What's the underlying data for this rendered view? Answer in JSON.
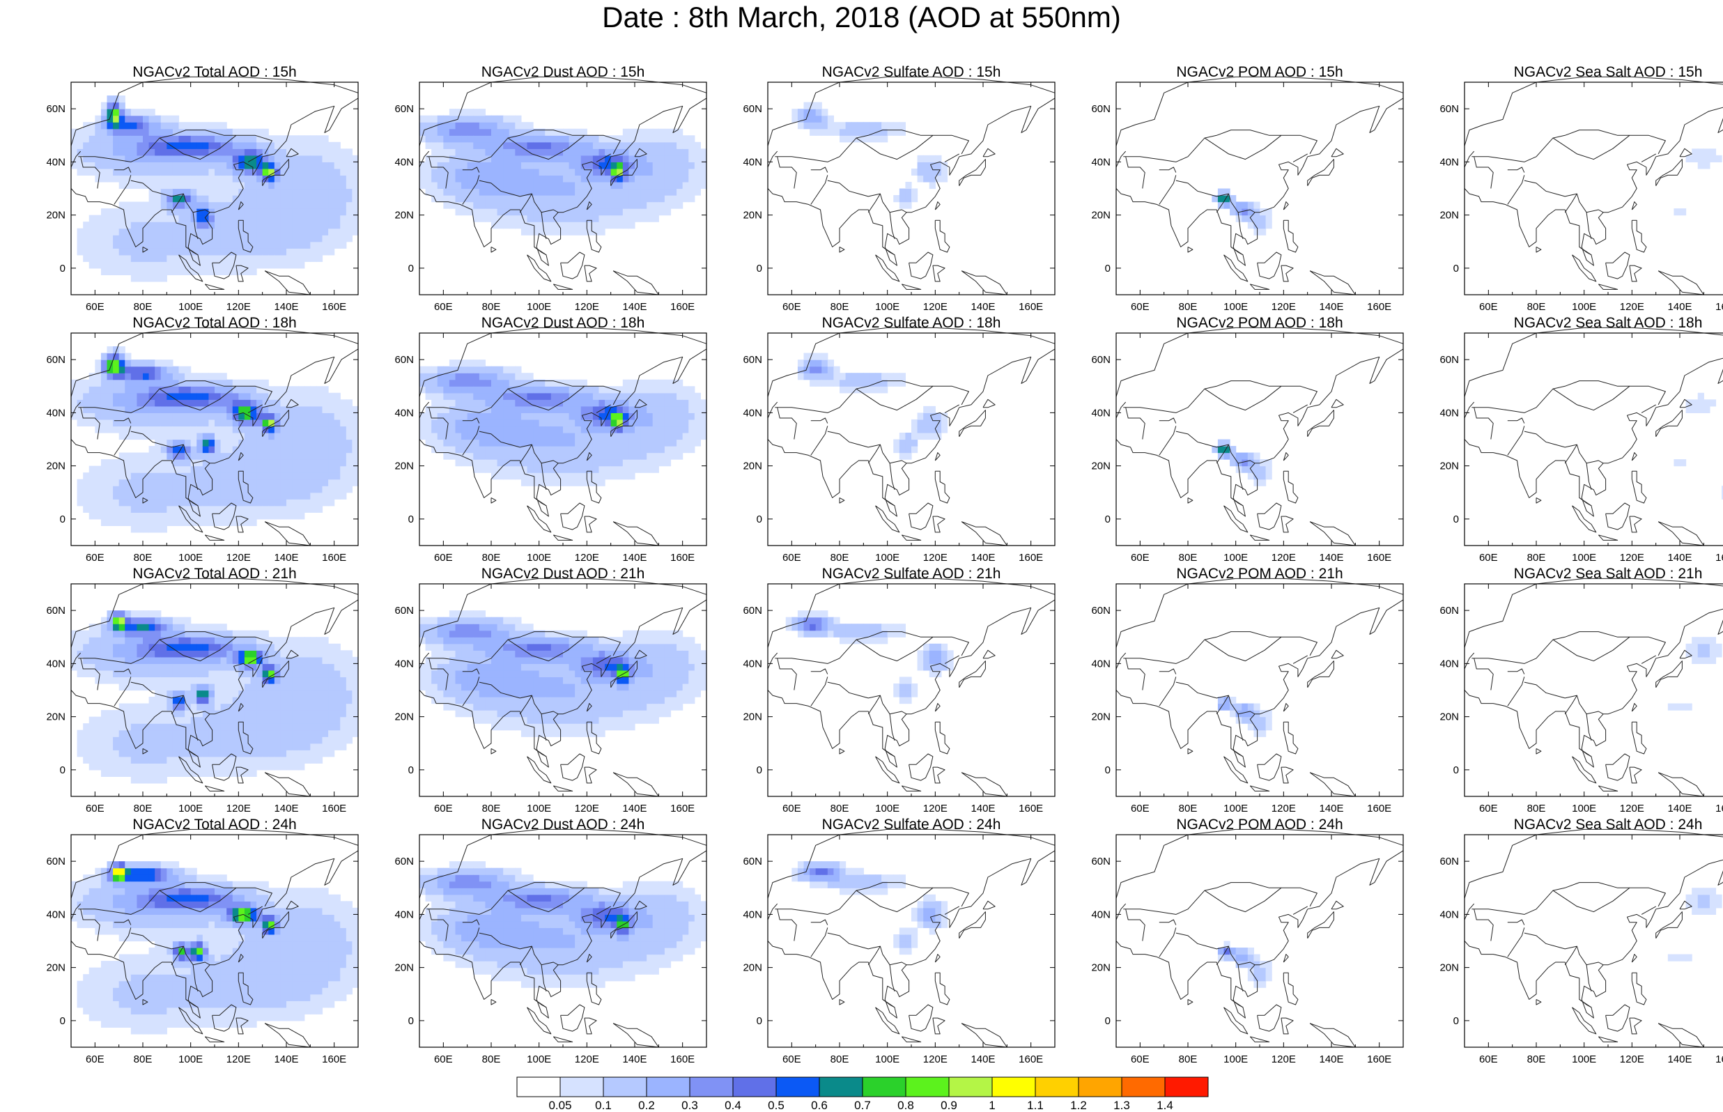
{
  "title": "Date : 8th March, 2018 (AOD at 550nm)",
  "lon_ticks": [
    "60E",
    "80E",
    "100E",
    "120E",
    "140E",
    "160E"
  ],
  "lat_ticks": [
    "60N",
    "40N",
    "20N",
    "0"
  ],
  "panels": [
    [
      "NGACv2 Total AOD : 15h",
      "NGACv2 Dust AOD : 15h",
      "NGACv2 Sulfate AOD : 15h",
      "NGACv2 POM AOD : 15h",
      "NGACv2 Sea Salt AOD : 15h"
    ],
    [
      "NGACv2 Total AOD : 18h",
      "NGACv2 Dust AOD : 18h",
      "NGACv2 Sulfate AOD : 18h",
      "NGACv2 POM AOD : 18h",
      "NGACv2 Sea Salt AOD : 18h"
    ],
    [
      "NGACv2 Total AOD : 21h",
      "NGACv2 Dust AOD : 21h",
      "NGACv2 Sulfate AOD : 21h",
      "NGACv2 POM AOD : 21h",
      "NGACv2 Sea Salt AOD : 21h"
    ],
    [
      "NGACv2 Total AOD : 24h",
      "NGACv2 Dust AOD : 24h",
      "NGACv2 Sulfate AOD : 24h",
      "NGACv2 POM AOD : 24h",
      "NGACv2 Sea Salt  AOD : 24h"
    ]
  ],
  "colorbar": {
    "labels": [
      "0.05",
      "0.1",
      "0.2",
      "0.3",
      "0.4",
      "0.5",
      "0.6",
      "0.7",
      "0.8",
      "0.9",
      "1",
      "1.1",
      "1.2",
      "1.3",
      "1.4"
    ],
    "colors": [
      "#ffffff",
      "#d6e2ff",
      "#b5c9ff",
      "#9bb4ff",
      "#8092f5",
      "#6070e8",
      "#0b59f5",
      "#0a8a8a",
      "#2bd12b",
      "#5cf21d",
      "#b4f546",
      "#ffff00",
      "#ffd000",
      "#ffa500",
      "#ff6a00",
      "#ff1a00"
    ]
  },
  "chart_data": {
    "type": "heatmap",
    "title": "Date : 8th March, 2018 (AOD at 550nm)",
    "variable": "AOD at 550nm",
    "rows_forecast_hours": [
      "15h",
      "18h",
      "21h",
      "24h"
    ],
    "columns_species": [
      "Total",
      "Dust",
      "Sulfate",
      "POM",
      "Sea Salt"
    ],
    "xlim": [
      50,
      170
    ],
    "ylim": [
      -10,
      70
    ],
    "x_ticks": [
      60,
      80,
      100,
      120,
      140,
      160
    ],
    "y_ticks": [
      60,
      40,
      20,
      0
    ],
    "colorbar_levels": [
      0.05,
      0.1,
      0.2,
      0.3,
      0.4,
      0.5,
      0.6,
      0.7,
      0.8,
      0.9,
      1,
      1.1,
      1.2,
      1.3,
      1.4
    ],
    "approximate_features": [
      {
        "species": "Total",
        "description": "dust plume band from ~50E 50N across to ~130E 40N, peaks ~0.8-0.9 near 70E 58N, 125E 38N, 95E 28N"
      },
      {
        "species": "Dust",
        "description": "band 50E-140E at 30-55N, peak ~0.6 near 130E 37N"
      },
      {
        "species": "Sulfate",
        "description": "~0.2-0.4 near 60-75E 56N and eastern China 110-125E 25-40N"
      },
      {
        "species": "POM",
        "description": "~0.2-0.8 over Myanmar/southern China 95-110E 18-28N"
      },
      {
        "species": "Sea Salt",
        "description": "~0.1 over NW Pacific 140-165E 35-50N and 20N"
      }
    ],
    "fields": [
      [
        [
          [
            68,
            58,
            3,
            4.5,
            0.85
          ],
          [
            75,
            54,
            10,
            3.5,
            0.45
          ],
          [
            100,
            46,
            20,
            4,
            0.4
          ],
          [
            125,
            40,
            7,
            4,
            0.65
          ],
          [
            133,
            36,
            3,
            3,
            0.85
          ],
          [
            95,
            26,
            5,
            3,
            0.6
          ],
          [
            105,
            20,
            4,
            4,
            0.5
          ],
          [
            85,
            44,
            35,
            10,
            0.22
          ],
          [
            150,
            28,
            25,
            20,
            0.15
          ],
          [
            80,
            10,
            30,
            15,
            0.12
          ],
          [
            125,
            15,
            25,
            15,
            0.12
          ]
        ],
        [
          [
            70,
            52,
            18,
            5,
            0.35
          ],
          [
            100,
            46,
            20,
            4,
            0.35
          ],
          [
            128,
            40,
            10,
            4,
            0.4
          ],
          [
            133,
            36,
            3,
            3,
            0.7
          ],
          [
            110,
            30,
            40,
            15,
            0.2
          ],
          [
            150,
            40,
            18,
            12,
            0.14
          ],
          [
            75,
            35,
            20,
            8,
            0.2
          ]
        ],
        [
          [
            68,
            57,
            6,
            3.5,
            0.3
          ],
          [
            118,
            37,
            6,
            5,
            0.2
          ],
          [
            108,
            27,
            4,
            4,
            0.18
          ],
          [
            90,
            52,
            18,
            4,
            0.14
          ]
        ],
        [
          [
            95,
            26,
            3,
            2,
            0.8
          ],
          [
            103,
            22,
            4,
            3,
            0.35
          ],
          [
            110,
            18,
            5,
            5,
            0.15
          ]
        ],
        [
          [
            150,
            42,
            8,
            4,
            0.1
          ],
          [
            140,
            22,
            6,
            2,
            0.08
          ],
          [
            165,
            12,
            4,
            3,
            0.08
          ]
        ]
      ],
      [
        [
          [
            68,
            58,
            4,
            4,
            0.9
          ],
          [
            80,
            55,
            10,
            3,
            0.5
          ],
          [
            100,
            46,
            20,
            4,
            0.4
          ],
          [
            123,
            40,
            6,
            4,
            0.7
          ],
          [
            133,
            36,
            3,
            3,
            0.85
          ],
          [
            95,
            26,
            4,
            3,
            0.6
          ],
          [
            107,
            28,
            3,
            3,
            0.7
          ],
          [
            85,
            44,
            35,
            10,
            0.22
          ],
          [
            150,
            28,
            25,
            20,
            0.15
          ],
          [
            80,
            10,
            30,
            15,
            0.12
          ],
          [
            125,
            15,
            25,
            15,
            0.12
          ]
        ],
        [
          [
            70,
            52,
            18,
            5,
            0.35
          ],
          [
            100,
            46,
            20,
            4,
            0.35
          ],
          [
            128,
            40,
            10,
            4,
            0.4
          ],
          [
            133,
            37,
            3,
            3,
            0.7
          ],
          [
            110,
            30,
            40,
            15,
            0.2
          ],
          [
            150,
            40,
            18,
            12,
            0.14
          ],
          [
            75,
            35,
            20,
            8,
            0.2
          ]
        ],
        [
          [
            70,
            57,
            6,
            3.5,
            0.35
          ],
          [
            118,
            36,
            6,
            5,
            0.2
          ],
          [
            108,
            28,
            4,
            4,
            0.2
          ],
          [
            90,
            52,
            18,
            4,
            0.14
          ]
        ],
        [
          [
            95,
            26,
            3,
            2,
            0.8
          ],
          [
            103,
            22,
            4,
            3,
            0.35
          ],
          [
            110,
            18,
            5,
            5,
            0.15
          ]
        ],
        [
          [
            148,
            43,
            8,
            4,
            0.1
          ],
          [
            140,
            22,
            6,
            2,
            0.08
          ],
          [
            160,
            10,
            6,
            4,
            0.08
          ]
        ]
      ],
      [
        [
          [
            70,
            56,
            3,
            3,
            0.9
          ],
          [
            80,
            54,
            10,
            3,
            0.55
          ],
          [
            100,
            46,
            20,
            4,
            0.4
          ],
          [
            125,
            42,
            5,
            3,
            0.85
          ],
          [
            133,
            36,
            3,
            3,
            0.8
          ],
          [
            95,
            26,
            3,
            3,
            0.6
          ],
          [
            105,
            28,
            3,
            3,
            0.7
          ],
          [
            85,
            44,
            35,
            10,
            0.22
          ],
          [
            150,
            28,
            25,
            20,
            0.15
          ],
          [
            80,
            10,
            30,
            15,
            0.12
          ],
          [
            125,
            15,
            25,
            15,
            0.12
          ]
        ],
        [
          [
            70,
            52,
            18,
            5,
            0.35
          ],
          [
            100,
            46,
            20,
            4,
            0.35
          ],
          [
            128,
            40,
            10,
            4,
            0.4
          ],
          [
            135,
            36,
            3,
            3,
            0.65
          ],
          [
            110,
            30,
            40,
            15,
            0.2
          ],
          [
            150,
            40,
            18,
            12,
            0.14
          ],
          [
            75,
            35,
            20,
            8,
            0.2
          ]
        ],
        [
          [
            68,
            55,
            7,
            3,
            0.45
          ],
          [
            120,
            42,
            6,
            5,
            0.25
          ],
          [
            108,
            30,
            4,
            4,
            0.2
          ],
          [
            90,
            52,
            18,
            4,
            0.14
          ]
        ],
        [
          [
            95,
            25,
            3,
            2,
            0.35
          ],
          [
            103,
            22,
            4,
            3,
            0.3
          ],
          [
            110,
            18,
            5,
            5,
            0.15
          ]
        ],
        [
          [
            150,
            45,
            8,
            5,
            0.12
          ],
          [
            140,
            24,
            6,
            2,
            0.08
          ],
          [
            165,
            12,
            4,
            3,
            0.08
          ]
        ]
      ],
      [
        [
          [
            70,
            56,
            3,
            3,
            0.9
          ],
          [
            80,
            55,
            12,
            3,
            0.6
          ],
          [
            100,
            46,
            20,
            4,
            0.4
          ],
          [
            122,
            40,
            6,
            3,
            0.85
          ],
          [
            133,
            36,
            3,
            3,
            0.8
          ],
          [
            96,
            26,
            3,
            3,
            0.7
          ],
          [
            103,
            26,
            3,
            3,
            0.85
          ],
          [
            85,
            44,
            35,
            10,
            0.22
          ],
          [
            150,
            28,
            25,
            20,
            0.15
          ],
          [
            80,
            10,
            30,
            15,
            0.12
          ],
          [
            125,
            15,
            25,
            15,
            0.12
          ]
        ],
        [
          [
            70,
            52,
            18,
            5,
            0.35
          ],
          [
            100,
            46,
            20,
            4,
            0.35
          ],
          [
            128,
            40,
            10,
            4,
            0.4
          ],
          [
            135,
            36,
            3,
            3,
            0.6
          ],
          [
            110,
            30,
            40,
            15,
            0.2
          ],
          [
            150,
            40,
            18,
            12,
            0.14
          ],
          [
            75,
            35,
            20,
            8,
            0.2
          ]
        ],
        [
          [
            72,
            56,
            8,
            3,
            0.45
          ],
          [
            118,
            40,
            6,
            5,
            0.25
          ],
          [
            108,
            30,
            4,
            4,
            0.2
          ],
          [
            90,
            52,
            18,
            4,
            0.14
          ]
        ],
        [
          [
            96,
            26,
            3,
            2,
            0.4
          ],
          [
            103,
            24,
            4,
            3,
            0.3
          ],
          [
            110,
            18,
            5,
            5,
            0.15
          ]
        ],
        [
          [
            150,
            45,
            8,
            5,
            0.12
          ],
          [
            140,
            24,
            6,
            2,
            0.08
          ]
        ]
      ]
    ]
  }
}
